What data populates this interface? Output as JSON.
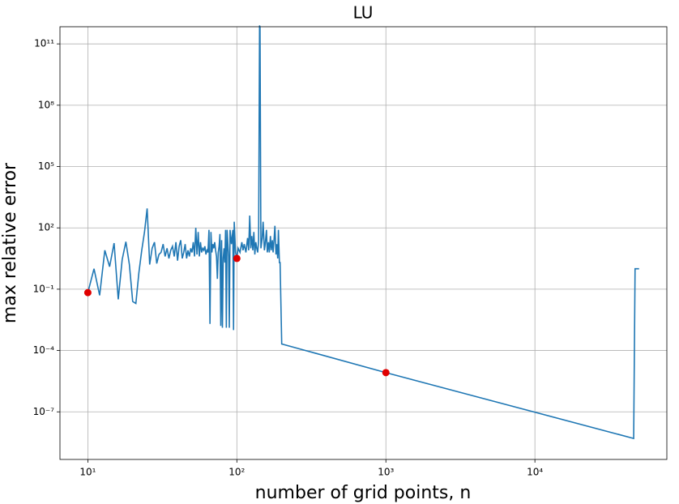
{
  "chart_data": {
    "type": "line",
    "title": "LU",
    "x_label": "number of grid points, n",
    "y_label": "max relative error",
    "xscale": "log",
    "yscale": "log",
    "grid": true,
    "xlim": [
      6.5,
      76800
    ],
    "ylim": [
      4.7e-10,
      690000000000.0
    ],
    "xticks": [
      {
        "value": 10,
        "label": "10¹"
      },
      {
        "value": 100,
        "label": "10²"
      },
      {
        "value": 1000,
        "label": "10³"
      },
      {
        "value": 10000,
        "label": "10⁴"
      }
    ],
    "yticks": [
      {
        "value": 1e-07,
        "label": "10⁻⁷"
      },
      {
        "value": 0.0001,
        "label": "10⁻⁴"
      },
      {
        "value": 0.1,
        "label": "10⁻¹"
      },
      {
        "value": 100,
        "label": "10²"
      },
      {
        "value": 100000,
        "label": "10⁵"
      },
      {
        "value": 100000000,
        "label": "10⁸"
      },
      {
        "value": 100000000000,
        "label": "10¹¹"
      }
    ],
    "series": [
      {
        "color": "#1f77b4",
        "style": "line",
        "x": [
          10,
          11,
          12,
          13,
          14,
          15,
          16,
          17,
          18,
          19,
          20,
          21,
          22,
          23,
          24,
          25,
          26,
          27,
          28,
          29,
          30,
          31,
          32,
          33,
          34,
          35,
          36,
          37,
          38,
          39,
          40,
          41,
          42,
          43,
          44,
          45,
          46,
          47,
          48,
          49,
          50,
          51,
          52,
          53,
          54,
          55,
          56,
          57,
          58,
          59,
          60,
          61,
          62,
          63,
          64,
          65,
          66,
          67,
          68,
          69,
          70,
          71,
          72,
          73,
          74,
          75,
          76,
          77,
          78,
          79,
          80,
          81,
          82,
          83,
          84,
          85,
          86,
          88,
          89,
          90,
          92,
          94,
          95,
          96,
          98,
          100,
          102,
          105,
          108,
          110,
          112,
          115,
          118,
          120,
          122,
          124,
          126,
          128,
          130,
          132,
          134,
          136,
          138,
          140,
          142,
          143,
          145,
          148,
          150,
          153,
          155,
          158,
          160,
          163,
          165,
          168,
          170,
          173,
          175,
          178,
          180,
          183,
          185,
          188,
          190,
          193,
          195,
          200,
          1000,
          46000,
          47000,
          50000
        ],
        "y": [
          0.068,
          1,
          0.05,
          8,
          1.26,
          18,
          0.032,
          2.8,
          21,
          1.6,
          0.025,
          0.02,
          0.63,
          8,
          63,
          890,
          1.6,
          10,
          20,
          1.8,
          5,
          6.3,
          16,
          4,
          10,
          3.2,
          8,
          12.6,
          4,
          20,
          2.5,
          12.6,
          25,
          3.2,
          6.3,
          16,
          3.2,
          8,
          4,
          10,
          6.3,
          20,
          4,
          100,
          5,
          63,
          4,
          20,
          6.3,
          10,
          8,
          12.6,
          5,
          8,
          6.3,
          80,
          0.002,
          63,
          6.3,
          16,
          10,
          20,
          8,
          4,
          0.32,
          6.3,
          12.6,
          50,
          0.0016,
          25,
          0.0013,
          3.2,
          10,
          2,
          80,
          0.0013,
          80,
          4,
          0.0013,
          80,
          16,
          80,
          0.001,
          200,
          6.3,
          3.2,
          10,
          6.3,
          20,
          8,
          16,
          6.3,
          32,
          8,
          400,
          10,
          40,
          8,
          63,
          5,
          20,
          10,
          6.3,
          25,
          800000000000.0,
          630000000000.0,
          10,
          32,
          200,
          8,
          16,
          80,
          6.3,
          20,
          6.3,
          40,
          8,
          25,
          6.3,
          32,
          126,
          5,
          16,
          3.2,
          80,
          2,
          2,
          0.00021,
          8.3e-06,
          5e-09,
          1,
          1
        ]
      },
      {
        "color": "#e00000",
        "style": "points",
        "x": [
          10,
          100,
          1000
        ],
        "y": [
          0.068,
          3.2,
          8.3e-06
        ]
      }
    ]
  }
}
